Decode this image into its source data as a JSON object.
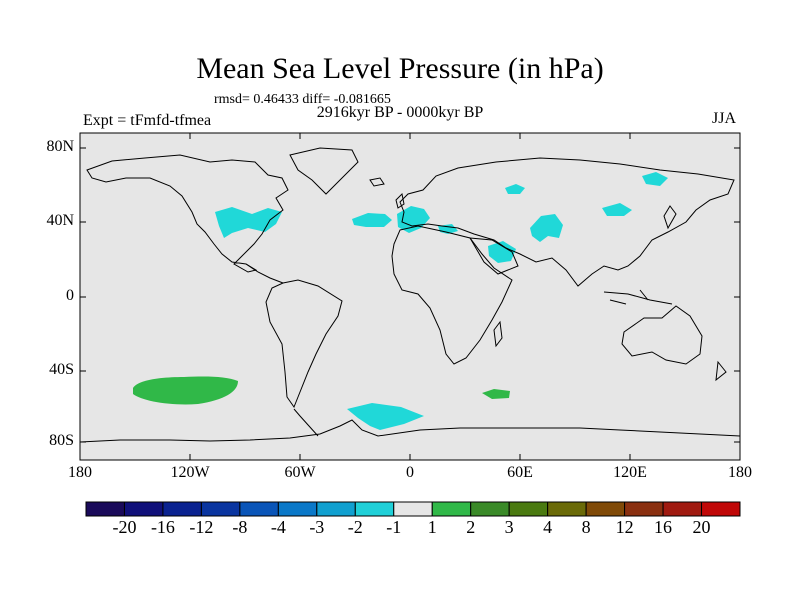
{
  "title": "Mean Sea Level Pressure (in hPa)",
  "stats": "rmsd= 0.46433 diff= -0.081665",
  "period": "2916kyr BP - 0000kyr BP",
  "experiment": "Expt = tFmfd-tfmea",
  "season": "JJA",
  "y_axis_labels": [
    "80N",
    "40N",
    "0",
    "40S",
    "80S"
  ],
  "x_axis_labels": [
    "180",
    "120W",
    "60W",
    "0",
    "60E",
    "120E",
    "180"
  ],
  "colorbar": {
    "labels": [
      "-20",
      "-16",
      "-12",
      "-8",
      "-4",
      "-3",
      "-2",
      "-1",
      "1",
      "2",
      "3",
      "4",
      "8",
      "12",
      "16",
      "20"
    ],
    "colors": [
      "#1a0a5a",
      "#10107a",
      "#0a2290",
      "#0a35a0",
      "#0a55b8",
      "#0a78c8",
      "#10a0d0",
      "#20d0d8",
      "#e6e6e6",
      "#30b848",
      "#3a8a28",
      "#4a7a10",
      "#6a6a08",
      "#804a08",
      "#8a3010",
      "#a01a10",
      "#c00808"
    ]
  },
  "colors": {
    "map_background": "#e6e6e6",
    "negative_anomaly": "#20d8d8",
    "positive_anomaly": "#30b848"
  }
}
